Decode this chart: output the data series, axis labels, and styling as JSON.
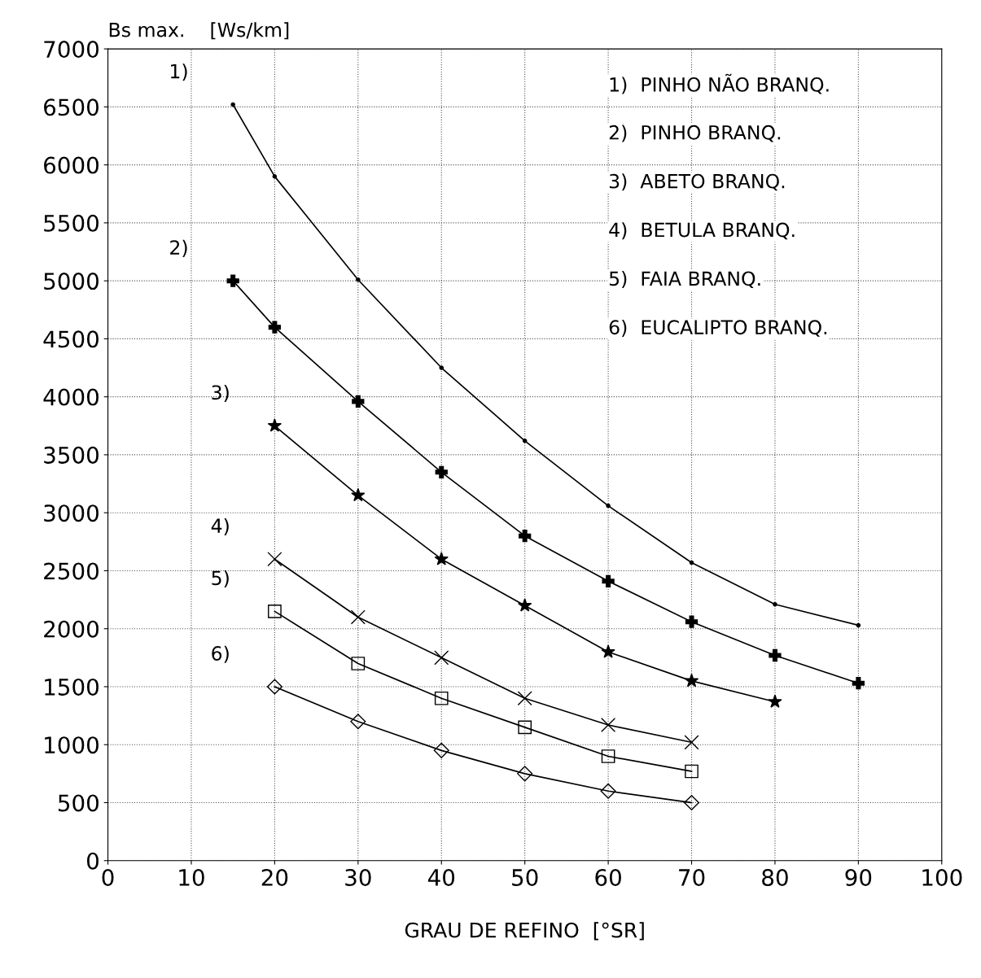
{
  "chart_data": {
    "type": "line",
    "ylabel": "Bs max.    [Ws/km]",
    "xlabel": "GRAU DE REFINO  [°SR]",
    "xlim": [
      0,
      100
    ],
    "xticks": [
      0,
      10,
      20,
      30,
      40,
      50,
      60,
      70,
      80,
      90,
      100
    ],
    "ylim": [
      0,
      7000
    ],
    "yticks": [
      0,
      500,
      1000,
      1500,
      2000,
      2500,
      3000,
      3500,
      4000,
      4500,
      5000,
      5500,
      6000,
      6500,
      7000
    ],
    "grid": true,
    "line_style": "solid",
    "series": [
      {
        "color": "#000000",
        "marker": "circle",
        "x": [
          15,
          20,
          30,
          40,
          50,
          60,
          70,
          80,
          90
        ],
        "values": [
          6520,
          5900,
          5010,
          4250,
          3620,
          3060,
          2570,
          2210,
          2030
        ]
      },
      {
        "color": "#000000",
        "marker": "cross",
        "x": [
          15,
          20,
          30,
          40,
          50,
          60,
          70,
          80,
          90
        ],
        "values": [
          5000,
          4600,
          3960,
          3350,
          2800,
          2410,
          2060,
          1770,
          1530
        ]
      },
      {
        "color": "#000000",
        "marker": "star",
        "x": [
          20,
          30,
          40,
          50,
          60,
          70,
          80
        ],
        "values": [
          3750,
          3150,
          2600,
          2200,
          1800,
          1550,
          1370
        ]
      },
      {
        "color": "#000000",
        "marker": "x",
        "x": [
          20,
          30,
          40,
          50,
          60,
          70
        ],
        "values": [
          2600,
          2100,
          1750,
          1400,
          1170,
          1020
        ]
      },
      {
        "color": "#000000",
        "marker": "square",
        "x": [
          20,
          30,
          40,
          50,
          60,
          70
        ],
        "values": [
          2150,
          1700,
          1400,
          1150,
          900,
          770
        ]
      },
      {
        "color": "#000000",
        "marker": "diamond",
        "x": [
          20,
          30,
          40,
          50,
          60,
          70
        ],
        "values": [
          1500,
          1200,
          950,
          750,
          600,
          500
        ]
      }
    ],
    "annotations": [
      "1)",
      "2)",
      "3)",
      "4)",
      "5)",
      "6)",
      "1)  PINHO NÃO BRANQ.",
      "2)  PINHO BRANQ.",
      "3)  ABETO BRANQ.",
      "4)  BETULA BRANQ.",
      "5)  FAIA BRANQ.",
      "6)  EUCALIPTO BRANQ."
    ]
  }
}
